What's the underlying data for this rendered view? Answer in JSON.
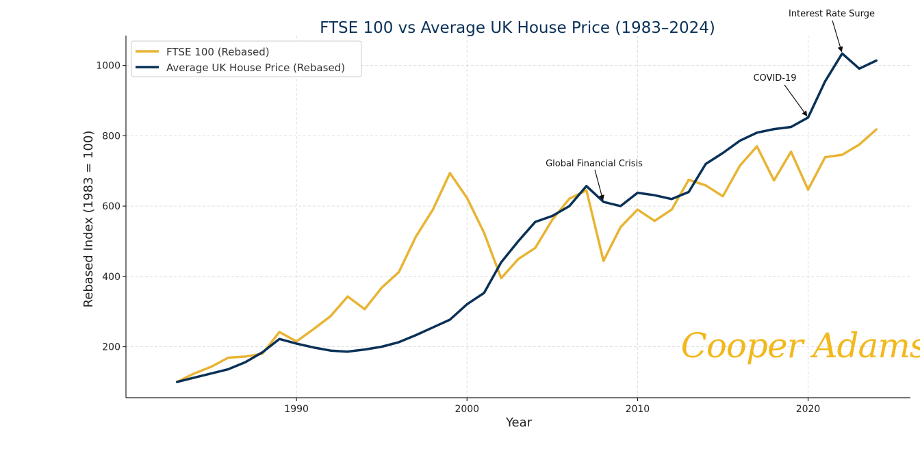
{
  "chart_data": {
    "type": "line",
    "title": "FTSE 100 vs Average UK House Price (1983–2024)",
    "xlabel": "Year",
    "ylabel": "Rebased Index (1983 = 100)",
    "xlim": [
      1980,
      2026
    ],
    "ylim": [
      55,
      1085
    ],
    "x_ticks": [
      1990,
      2000,
      2010,
      2020
    ],
    "y_ticks": [
      200,
      400,
      600,
      800,
      1000
    ],
    "grid": true,
    "legend_position": "top-left",
    "x": [
      1983,
      1984,
      1985,
      1986,
      1987,
      1988,
      1989,
      1990,
      1991,
      1992,
      1993,
      1994,
      1995,
      1996,
      1997,
      1998,
      1999,
      2000,
      2001,
      2002,
      2003,
      2004,
      2005,
      2006,
      2007,
      2008,
      2009,
      2010,
      2011,
      2012,
      2013,
      2014,
      2015,
      2016,
      2017,
      2018,
      2019,
      2020,
      2021,
      2022,
      2023,
      2024
    ],
    "series": [
      {
        "name": "FTSE 100 (Rebased)",
        "color": "#e8b434",
        "values": [
          100,
          124,
          143,
          169,
          172,
          180,
          242,
          215,
          250,
          287,
          343,
          307,
          368,
          412,
          513,
          590,
          694,
          623,
          524,
          395,
          449,
          481,
          561,
          621,
          645,
          444,
          540,
          590,
          558,
          590,
          675,
          659,
          628,
          715,
          770,
          673,
          755,
          647,
          739,
          746,
          775,
          818
        ]
      },
      {
        "name": "Average UK House Price (Rebased)",
        "color": "#0a3157",
        "values": [
          100,
          112,
          124,
          136,
          156,
          184,
          222,
          209,
          198,
          189,
          186,
          192,
          200,
          213,
          233,
          255,
          277,
          321,
          353,
          440,
          500,
          555,
          572,
          600,
          657,
          612,
          600,
          638,
          631,
          620,
          640,
          720,
          751,
          786,
          809,
          819,
          825,
          852,
          955,
          1034,
          991,
          1014
        ]
      }
    ],
    "annotations": [
      {
        "text": "Global Financial Crisis",
        "x": 2008,
        "y": 612
      },
      {
        "text": "COVID-19",
        "x": 2020,
        "y": 852
      },
      {
        "text": "Interest Rate Surge",
        "x": 2022,
        "y": 1034
      }
    ]
  },
  "branding": {
    "logo_text": "Cooper Adams",
    "logo_color": "#f2b81e"
  }
}
